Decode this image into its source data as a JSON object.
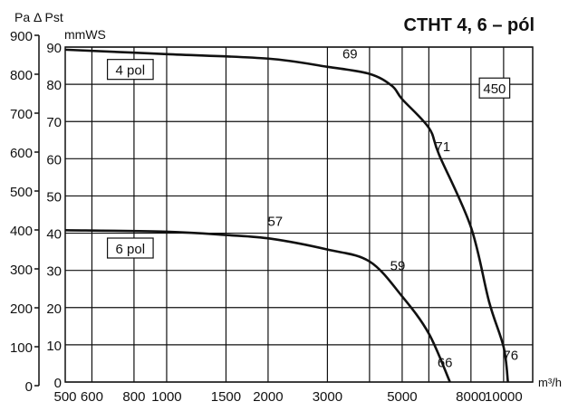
{
  "chart_data": {
    "type": "line",
    "title": "CTHT 4, 6 – pól",
    "ylabel_pa": "Pa Δ Pst",
    "ylabel_mmws": "mmWS",
    "xlabel": "m³/h",
    "x_scale": "log",
    "xlim": [
      500,
      12200
    ],
    "ylim_mmws": [
      0,
      90
    ],
    "ylim_pa": [
      0,
      900
    ],
    "grid": true,
    "x_gridlines": [
      600,
      800,
      1000,
      1500,
      2000,
      3000,
      4000,
      5000,
      6000,
      8000,
      10000
    ],
    "x_ticks": [
      {
        "value": 500,
        "label": "500"
      },
      {
        "value": 600,
        "label": "600"
      },
      {
        "value": 800,
        "label": "800"
      },
      {
        "value": 1000,
        "label": "1000"
      },
      {
        "value": 1500,
        "label": "1500"
      },
      {
        "value": 2000,
        "label": "2000"
      },
      {
        "value": 3000,
        "label": "3000"
      },
      {
        "value": 5000,
        "label": "5000"
      },
      {
        "value": 8000,
        "label": "8000"
      },
      {
        "value": 10000,
        "label": "10000"
      }
    ],
    "y_ticks_mmws": [
      "0",
      "10",
      "20",
      "30",
      "40",
      "50",
      "60",
      "70",
      "80",
      "90"
    ],
    "y_ticks_pa": [
      "0",
      "100",
      "200",
      "300",
      "400",
      "500",
      "600",
      "700",
      "800",
      "900"
    ],
    "series": [
      {
        "name": "4 pol",
        "x": [
          500,
          1000,
          2000,
          3000,
          4000,
          4660,
          5000,
          6000,
          6440,
          8000,
          9060,
          10000,
          10300
        ],
        "y": [
          89.3,
          88.1,
          86.9,
          84.7,
          82.8,
          79.6,
          76,
          68.3,
          61,
          41.6,
          21.5,
          9.4,
          0
        ]
      },
      {
        "name": "6 pol",
        "x": [
          500,
          1000,
          1500,
          2040,
          3000,
          4000,
          5000,
          6000,
          6930
        ],
        "y": [
          40.8,
          40.4,
          39.5,
          38.5,
          35.6,
          32.4,
          23,
          13,
          0
        ]
      }
    ],
    "annotations": [
      {
        "text": "69",
        "x": 3500,
        "y": 87
      },
      {
        "text": "71",
        "x": 6600,
        "y": 62
      },
      {
        "text": "57",
        "x": 2100,
        "y": 42
      },
      {
        "text": "59",
        "x": 4850,
        "y": 30
      },
      {
        "text": "66",
        "x": 6700,
        "y": 4
      },
      {
        "text": "76",
        "x": 10500,
        "y": 6
      }
    ],
    "boxed_labels": [
      {
        "text": "4 pol",
        "x": 780,
        "y": 84
      },
      {
        "text": "6 pol",
        "x": 780,
        "y": 36
      },
      {
        "text": "450",
        "x": 9400,
        "y": 79
      }
    ]
  }
}
